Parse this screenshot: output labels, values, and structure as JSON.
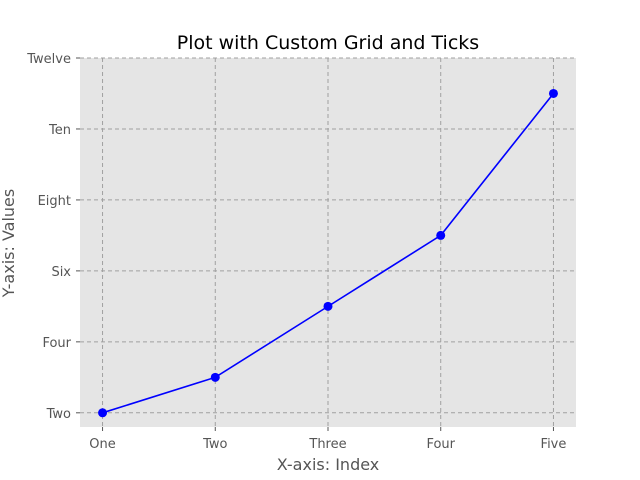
{
  "chart_data": {
    "type": "line",
    "title": "Plot with Custom Grid and Ticks",
    "xlabel": "X-axis: Index",
    "ylabel": "Y-axis: Values",
    "x": [
      1,
      2,
      3,
      4,
      5
    ],
    "x_tick_values": [
      1,
      2,
      3,
      4,
      5
    ],
    "x_tick_labels": [
      "One",
      "Two",
      "Three",
      "Four",
      "Five"
    ],
    "y_tick_values": [
      2,
      4,
      6,
      8,
      10,
      12
    ],
    "y_tick_labels": [
      "Two",
      "Four",
      "Six",
      "Eight",
      "Ten",
      "Twelve"
    ],
    "xlim": [
      0.8,
      5.2
    ],
    "ylim": [
      1.6,
      12
    ],
    "grid": true,
    "series": [
      {
        "values": [
          2,
          3,
          5,
          7,
          11
        ],
        "color": "#0000ff",
        "marker": "circle"
      }
    ]
  },
  "colors": {
    "plot_background": "#e5e5e5",
    "grid": "#a0a0a0",
    "tick_text": "#555555"
  }
}
